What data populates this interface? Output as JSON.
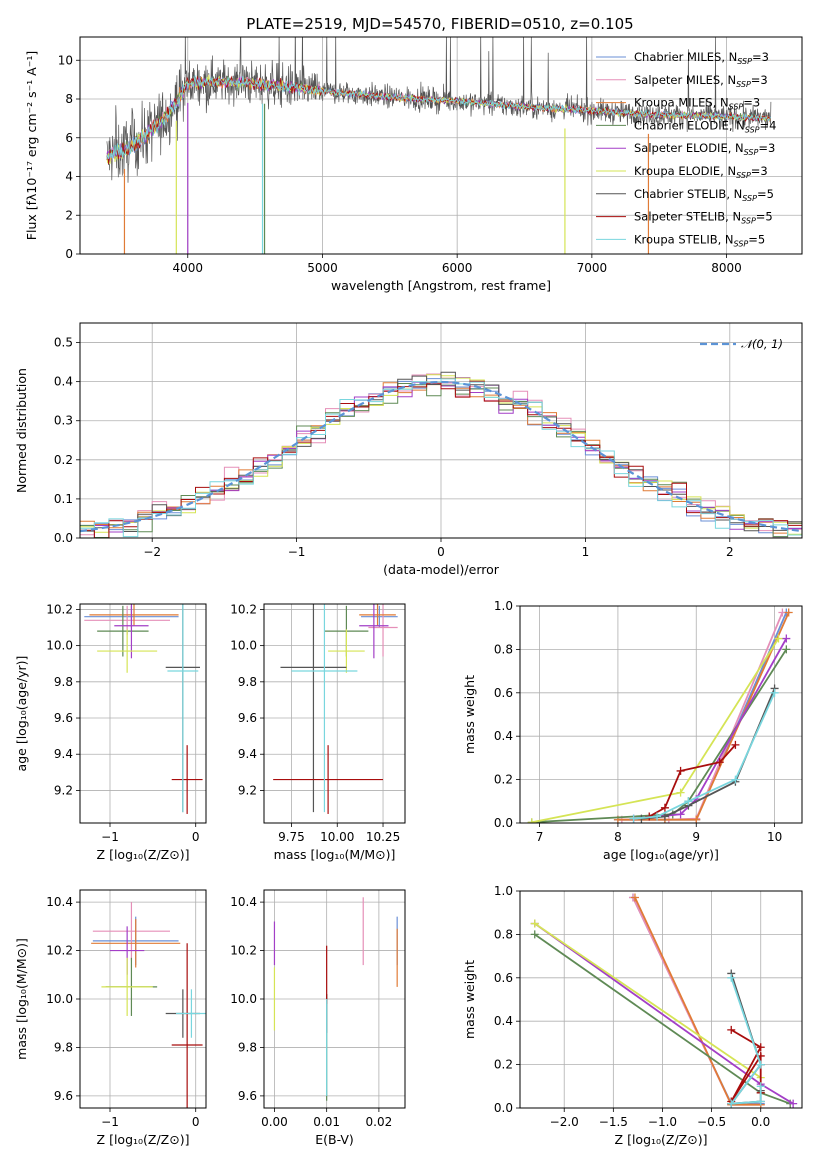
{
  "title": "PLATE=2519, MJD=54570, FIBERID=0510, z=0.105",
  "colors": {
    "series": [
      "#6a8fd6",
      "#e58fb8",
      "#e07b36",
      "#5f8a55",
      "#a33fc7",
      "#d5e455",
      "#555555",
      "#a80d0d",
      "#79d6de"
    ],
    "gaussian": "#5b93d6"
  },
  "chart_data": [
    {
      "type": "line",
      "id": "spectrum",
      "xlabel": "wavelength [Angstrom, rest frame]",
      "ylabel": "Flux [fλ10⁻¹⁷ erg cm⁻² s⁻¹ A⁻¹]",
      "xlim": [
        3200,
        8560
      ],
      "ylim": [
        0,
        11.2
      ],
      "xticks": [
        4000,
        5000,
        6000,
        7000,
        8000
      ],
      "yticks": [
        0,
        2,
        4,
        6,
        8,
        10
      ],
      "legend_loc": "right",
      "series": [
        {
          "name": "Chabrier MILES, N_SSP=3"
        },
        {
          "name": "Salpeter MILES, N_SSP=3"
        },
        {
          "name": "Kroupa MILES, N_SSP=3"
        },
        {
          "name": "Chabrier ELODIE, N_SSP=4"
        },
        {
          "name": "Salpeter ELODIE, N_SSP=3"
        },
        {
          "name": "Kroupa ELODIE, N_SSP=3"
        },
        {
          "name": "Chabrier STELIB, N_SSP=5"
        },
        {
          "name": "Salpeter STELIB, N_SSP=5"
        },
        {
          "name": "Kroupa STELIB, N_SSP=5"
        }
      ],
      "continuum": {
        "x": [
          3400,
          3600,
          3800,
          3950,
          4000,
          4200,
          4500,
          4800,
          5000,
          5500,
          6000,
          6500,
          7000,
          7400,
          7500,
          8000,
          8300
        ],
        "y": [
          5.0,
          5.6,
          6.8,
          8.2,
          8.8,
          8.9,
          8.8,
          8.6,
          8.4,
          8.1,
          7.9,
          7.6,
          7.4,
          7.2,
          7.2,
          7.1,
          7.0
        ]
      }
    },
    {
      "type": "line",
      "id": "residuals",
      "xlabel": "(data-model)/error",
      "ylabel": "Normed distribution",
      "xlim": [
        -2.5,
        2.5
      ],
      "ylim": [
        0,
        0.55
      ],
      "xticks": [
        -2,
        -1,
        0,
        1,
        2
      ],
      "yticks": [
        0.0,
        0.1,
        0.2,
        0.3,
        0.4,
        0.5
      ],
      "legend": {
        "label": "𝒩(0, 1)",
        "loc": "top-right"
      }
    },
    {
      "type": "scatter",
      "id": "age-vs-Z",
      "xlabel": "Z [log₁₀(Z/Z⊙)]",
      "ylabel": "age  [log₁₀(age/yr)]",
      "xlim": [
        -1.35,
        0.12
      ],
      "ylim": [
        9.02,
        10.23
      ],
      "xticks": [
        -1,
        0
      ],
      "yticks": [
        9.2,
        9.4,
        9.6,
        9.8,
        10.0,
        10.2
      ],
      "points": [
        {
          "x": -0.75,
          "y": 10.16,
          "xerr": 0.55,
          "yerr": 0.06
        },
        {
          "x": -0.8,
          "y": 10.14,
          "xerr": 0.5,
          "yerr": 0.08
        },
        {
          "x": -0.72,
          "y": 10.17,
          "xerr": 0.52,
          "yerr": 0.06
        },
        {
          "x": -0.85,
          "y": 10.08,
          "xerr": 0.3,
          "yerr": 0.14
        },
        {
          "x": -0.75,
          "y": 10.11,
          "xerr": 0.2,
          "yerr": 0.18
        },
        {
          "x": -0.8,
          "y": 9.97,
          "xerr": 0.35,
          "yerr": 0.12
        },
        {
          "x": -0.15,
          "y": 9.88,
          "xerr": 0.2,
          "yerr": 0.8
        },
        {
          "x": -0.1,
          "y": 9.26,
          "xerr": 0.18,
          "yerr": 0.19
        },
        {
          "x": -0.15,
          "y": 9.86,
          "xerr": 0.18,
          "yerr": 0.78
        }
      ]
    },
    {
      "type": "scatter",
      "id": "age-vs-mass",
      "xlabel": "mass [log₁₀(M/M⊙)]",
      "ylabel": "",
      "xlim": [
        9.6,
        10.37
      ],
      "ylim": [
        9.02,
        10.23
      ],
      "xticks": [
        9.75,
        10.0,
        10.25
      ],
      "xticklabels": [
        "9.75",
        "10.00",
        "10.25"
      ],
      "yticks": [
        9.2,
        9.4,
        9.6,
        9.8,
        10.0,
        10.2
      ],
      "points": [
        {
          "x": 10.23,
          "y": 10.16,
          "xerr": 0.1,
          "yerr": 0.06
        },
        {
          "x": 10.25,
          "y": 10.1,
          "xerr": 0.08,
          "yerr": 0.16
        },
        {
          "x": 10.22,
          "y": 10.17,
          "xerr": 0.1,
          "yerr": 0.06
        },
        {
          "x": 10.05,
          "y": 10.08,
          "xerr": 0.12,
          "yerr": 0.14
        },
        {
          "x": 10.2,
          "y": 10.11,
          "xerr": 0.08,
          "yerr": 0.18
        },
        {
          "x": 10.05,
          "y": 9.97,
          "xerr": 0.1,
          "yerr": 0.12
        },
        {
          "x": 9.87,
          "y": 9.88,
          "xerr": 0.18,
          "yerr": 0.8
        },
        {
          "x": 9.95,
          "y": 9.26,
          "xerr": 0.3,
          "yerr": 0.19
        },
        {
          "x": 9.93,
          "y": 9.86,
          "xerr": 0.18,
          "yerr": 0.78
        }
      ]
    },
    {
      "type": "line",
      "id": "mass-weight-vs-age",
      "xlabel": "age  [log₁₀(age/yr)]",
      "ylabel": "mass weight",
      "xlim": [
        6.75,
        10.35
      ],
      "ylim": [
        0,
        1.0
      ],
      "xticks": [
        7,
        8,
        9,
        10
      ],
      "yticks": [
        0.0,
        0.2,
        0.4,
        0.6,
        0.8,
        1.0
      ],
      "series": [
        {
          "x": [
            8.0,
            8.6,
            9.0,
            10.15
          ],
          "y": [
            0.015,
            0.015,
            0.015,
            0.97
          ]
        },
        {
          "x": [
            8.05,
            8.65,
            9.0,
            10.1
          ],
          "y": [
            0.015,
            0.015,
            0.02,
            0.97
          ]
        },
        {
          "x": [
            8.0,
            8.6,
            9.0,
            10.18
          ],
          "y": [
            0.015,
            0.015,
            0.015,
            0.97
          ]
        },
        {
          "x": [
            6.9,
            8.7,
            8.9,
            10.15
          ],
          "y": [
            0.003,
            0.04,
            0.1,
            0.8
          ]
        },
        {
          "x": [
            8.2,
            8.8,
            9.0,
            10.15
          ],
          "y": [
            0.02,
            0.04,
            0.11,
            0.85
          ]
        },
        {
          "x": [
            6.9,
            8.8,
            10.05
          ],
          "y": [
            0.003,
            0.14,
            0.85
          ]
        },
        {
          "x": [
            8.3,
            8.6,
            8.9,
            9.5,
            10.0
          ],
          "y": [
            0.02,
            0.03,
            0.08,
            0.19,
            0.62
          ]
        },
        {
          "x": [
            8.4,
            8.6,
            8.8,
            9.3,
            9.5
          ],
          "y": [
            0.03,
            0.07,
            0.24,
            0.28,
            0.36
          ]
        },
        {
          "x": [
            8.2,
            8.5,
            8.9,
            9.5,
            10.0
          ],
          "y": [
            0.02,
            0.03,
            0.1,
            0.2,
            0.6
          ]
        }
      ]
    },
    {
      "type": "scatter",
      "id": "mass-vs-Z",
      "xlabel": "Z [log₁₀(Z/Z⊙)]",
      "ylabel": "mass [log₁₀(M/M⊙)]",
      "xlim": [
        -1.35,
        0.12
      ],
      "ylim": [
        9.55,
        10.45
      ],
      "xticks": [
        -1,
        0
      ],
      "yticks": [
        9.6,
        9.8,
        10.0,
        10.2,
        10.4
      ],
      "points": [
        {
          "x": -0.7,
          "y": 10.24,
          "xerr": 0.5,
          "yerr": 0.1
        },
        {
          "x": -0.75,
          "y": 10.28,
          "xerr": 0.45,
          "yerr": 0.12
        },
        {
          "x": -0.7,
          "y": 10.23,
          "xerr": 0.52,
          "yerr": 0.1
        },
        {
          "x": -0.75,
          "y": 10.05,
          "xerr": 0.3,
          "yerr": 0.12
        },
        {
          "x": -0.8,
          "y": 10.2,
          "xerr": 0.2,
          "yerr": 0.1
        },
        {
          "x": -0.8,
          "y": 10.05,
          "xerr": 0.3,
          "yerr": 0.12
        },
        {
          "x": -0.15,
          "y": 9.94,
          "xerr": 0.2,
          "yerr": 0.1
        },
        {
          "x": -0.1,
          "y": 9.81,
          "xerr": 0.18,
          "yerr": 0.42
        },
        {
          "x": -0.05,
          "y": 9.94,
          "xerr": 0.18,
          "yerr": 0.1
        }
      ]
    },
    {
      "type": "scatter",
      "id": "mass-vs-ebv",
      "xlabel": "E(B-V)",
      "ylabel": "",
      "xlim": [
        -0.002,
        0.025
      ],
      "ylim": [
        9.55,
        10.45
      ],
      "xticks": [
        0.0,
        0.01,
        0.02
      ],
      "xticklabels": [
        "0.00",
        "0.01",
        "0.02"
      ],
      "yticks": [
        9.6,
        9.8,
        10.0,
        10.2,
        10.4
      ],
      "points": [
        {
          "x": 0.0235,
          "y": 10.24,
          "yerr": 0.1
        },
        {
          "x": 0.017,
          "y": 10.28,
          "yerr": 0.14
        },
        {
          "x": 0.0235,
          "y": 10.17,
          "yerr": 0.12
        },
        {
          "x": 0.01,
          "y": 9.8,
          "yerr": 0.22
        },
        {
          "x": 0.0,
          "y": 10.23,
          "yerr": 0.09
        },
        {
          "x": 0.0,
          "y": 10.0,
          "yerr": 0.13
        },
        {
          "x": 0.01,
          "y": 9.94,
          "yerr": 0.08
        },
        {
          "x": 0.01,
          "y": 10.1,
          "yerr": 0.12
        },
        {
          "x": 0.01,
          "y": 9.8,
          "yerr": 0.2
        }
      ]
    },
    {
      "type": "line",
      "id": "mass-weight-vs-Z",
      "xlabel": "Z [log₁₀(Z/Z⊙)]",
      "ylabel": "mass weight",
      "xlim": [
        -2.45,
        0.42
      ],
      "ylim": [
        0,
        1.0
      ],
      "xticks": [
        -2.0,
        -1.5,
        -1.0,
        -0.5,
        0.0
      ],
      "xticklabels": [
        "−2.0",
        "−1.5",
        "−1.0",
        "−0.5",
        "0.0"
      ],
      "yticks": [
        0.0,
        0.2,
        0.4,
        0.6,
        0.8,
        1.0
      ],
      "series": [
        {
          "x": [
            -1.3,
            -0.3,
            0.0
          ],
          "y": [
            0.97,
            0.02,
            0.02
          ]
        },
        {
          "x": [
            -1.3,
            -0.3,
            0.0
          ],
          "y": [
            0.97,
            0.015,
            0.015
          ]
        },
        {
          "x": [
            -1.28,
            -0.3,
            0.0
          ],
          "y": [
            0.97,
            0.015,
            0.015
          ]
        },
        {
          "x": [
            -2.3,
            0.0,
            0.3
          ],
          "y": [
            0.8,
            0.07,
            0.02
          ]
        },
        {
          "x": [
            -2.3,
            0.0,
            0.33
          ],
          "y": [
            0.85,
            0.11,
            0.02
          ]
        },
        {
          "x": [
            -2.3,
            0.0
          ],
          "y": [
            0.85,
            0.14
          ]
        },
        {
          "x": [
            -0.3,
            0.0,
            -0.3,
            0.0,
            0.0
          ],
          "y": [
            0.62,
            0.2,
            0.02,
            0.03,
            0.08
          ]
        },
        {
          "x": [
            -0.3,
            0.0,
            -0.3,
            0.0,
            0.0
          ],
          "y": [
            0.36,
            0.28,
            0.03,
            0.24,
            0.07
          ]
        },
        {
          "x": [
            -0.3,
            0.0,
            -0.3,
            0.0,
            0.0
          ],
          "y": [
            0.6,
            0.2,
            0.02,
            0.03,
            0.1
          ]
        }
      ]
    }
  ]
}
